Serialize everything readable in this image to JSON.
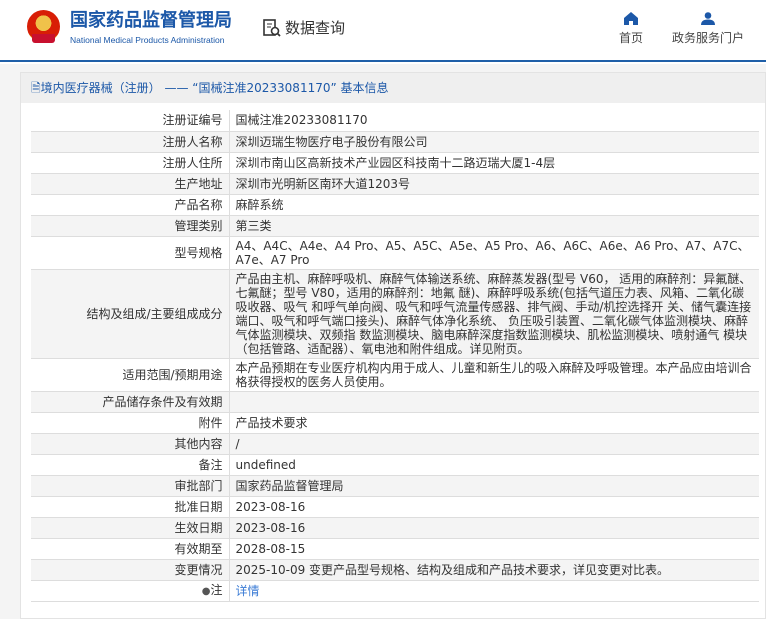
{
  "header": {
    "brand_cn": "国家药品监督管理局",
    "brand_en": "National Medical Products Administration",
    "query_label": "数据查询",
    "nav": [
      {
        "label": "首页",
        "icon": "home-icon"
      },
      {
        "label": "政务服务门户",
        "icon": "user-icon"
      }
    ]
  },
  "colors": {
    "brand": "#1c58a8",
    "link": "#3a7bd5"
  },
  "panel": {
    "title": "境内医疗器械（注册） —— “国械注准20233081170” 基本信息"
  },
  "rows": [
    {
      "label": "注册证编号",
      "value": "国械注准20233081170"
    },
    {
      "label": "注册人名称",
      "value": "深圳迈瑞生物医疗电子股份有限公司"
    },
    {
      "label": "注册人住所",
      "value": "深圳市南山区高新技术产业园区科技南十二路迈瑞大厦1-4层"
    },
    {
      "label": "生产地址",
      "value": "深圳市光明新区南环大道1203号"
    },
    {
      "label": "产品名称",
      "value": "麻醉系统"
    },
    {
      "label": "管理类别",
      "value": "第三类"
    },
    {
      "label": "型号规格",
      "value": "A4、A4C、A4e、A4 Pro、A5、A5C、A5e、A5 Pro、A6、A6C、A6e、A6 Pro、A7、A7C、A7e、A7 Pro"
    },
    {
      "label": "结构及组成/主要组成成分",
      "value": "产品由主机、麻醉呼吸机、麻醉气体输送系统、麻醉蒸发器(型号 V60， 适用的麻醉剂：异氟醚、七氟醚；型号 V80，适用的麻醉剂：地氟 醚)、麻醉呼吸系统(包括气道压力表、风箱、二氧化碳吸收器、吸气 和呼气单向阀、吸气和呼气流量传感器、排气阀、手动/机控选择开 关、储气囊连接端口、吸气和呼气端口接头)、麻醉气体净化系统、 负压吸引装置、二氧化碳气体监测模块、麻醉气体监测模块、双频指 数监测模块、脑电麻醉深度指数监测模块、肌松监测模块、喷射通气 模块（包括管路、适配器）、氧电池和附件组成。详见附页。"
    },
    {
      "label": "适用范围/预期用途",
      "value": "本产品预期在专业医疗机构内用于成人、儿童和新生儿的吸入麻醉及呼吸管理。本产品应由培训合格获得授权的医务人员使用。"
    },
    {
      "label": "产品储存条件及有效期",
      "value": ""
    },
    {
      "label": "附件",
      "value": "产品技术要求"
    },
    {
      "label": "其他内容",
      "value": "/"
    },
    {
      "label": "备注",
      "value": "undefined"
    },
    {
      "label": "审批部门",
      "value": "国家药品监督管理局"
    },
    {
      "label": "批准日期",
      "value": "2023-08-16"
    },
    {
      "label": "生效日期",
      "value": "2023-08-16"
    },
    {
      "label": "有效期至",
      "value": "2028-08-15"
    },
    {
      "label": "变更情况",
      "value": "2025-10-09 变更产品型号规格、结构及组成和产品技术要求，详见变更对比表。"
    },
    {
      "label": "注",
      "value": "详情",
      "icon": "lightbulb-icon"
    }
  ]
}
